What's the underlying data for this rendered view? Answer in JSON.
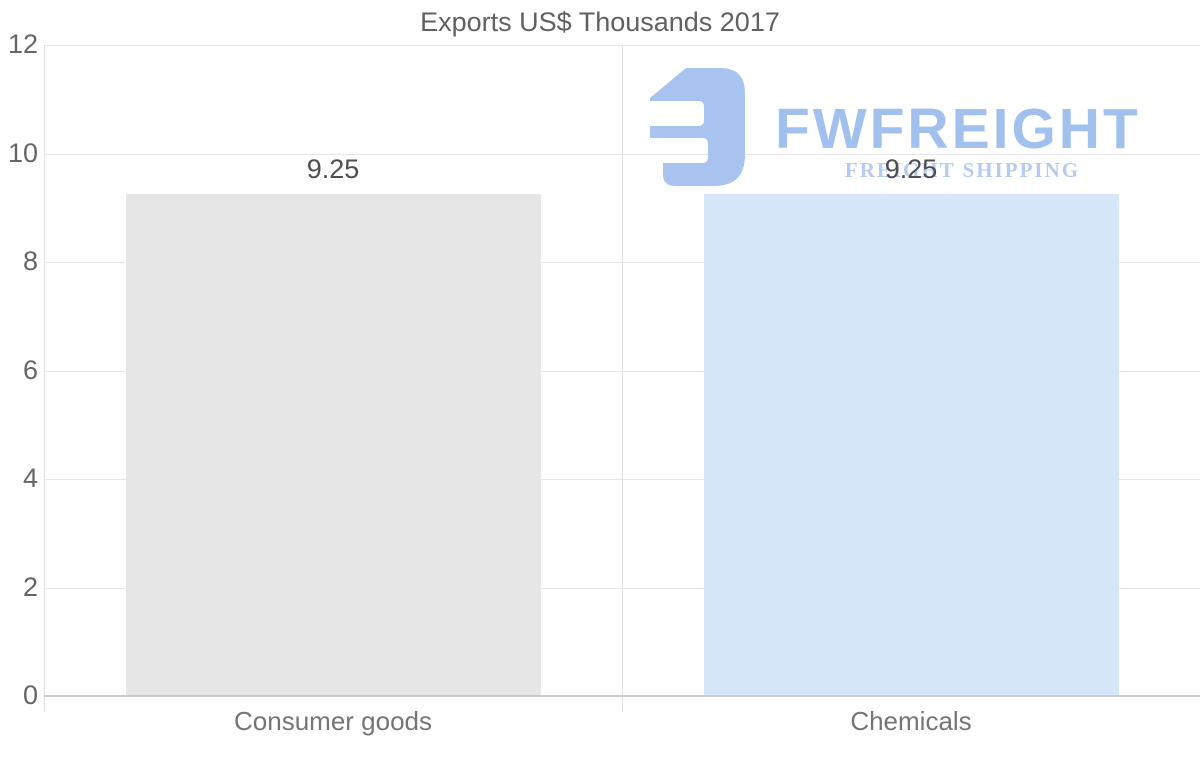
{
  "chart_data": {
    "type": "bar",
    "title": "Exports US$ Thousands 2017",
    "categories": [
      "Consumer goods",
      "Chemicals"
    ],
    "values": [
      9.25,
      9.25
    ],
    "data_labels": [
      "9.25",
      "9.25"
    ],
    "bar_colors": [
      "#e6e6e6",
      "#d5e6f8"
    ],
    "y_ticks": [
      "0",
      "2",
      "4",
      "6",
      "8",
      "10",
      "12"
    ],
    "y_tick_values": [
      0,
      2,
      4,
      6,
      8,
      10,
      12
    ],
    "ylim": [
      0,
      12
    ],
    "xlabel": "",
    "ylabel": "",
    "grid": true,
    "legend": "none"
  },
  "watermark": {
    "wordmark": "FWFREIGHT",
    "subtitle": "FREIGHT SHIPPING",
    "mark_color": "#a8c3ef",
    "wordmark_color": "#a2c0ee",
    "subtitle_color": "#b7cbf0"
  },
  "colors": {
    "background": "#ffffff",
    "title_text": "#616161",
    "tick_text": "#666666",
    "category_text": "#757575",
    "data_label_text": "#4f4f4f",
    "gridline": "#e6e6e6",
    "axis_line": "#c9c9c9"
  }
}
